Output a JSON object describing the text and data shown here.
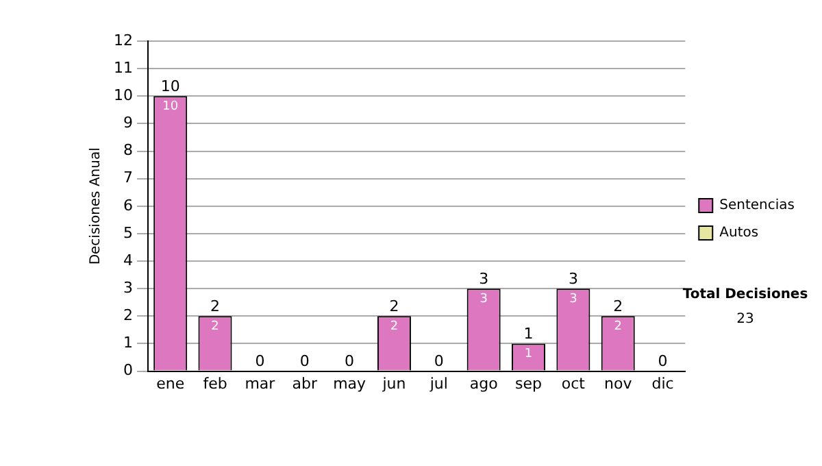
{
  "chart_data": {
    "type": "bar",
    "stacked": true,
    "ylabel": "Decisiones Anual",
    "categories": [
      "ene",
      "feb",
      "mar",
      "abr",
      "may",
      "jun",
      "jul",
      "ago",
      "sep",
      "oct",
      "nov",
      "dic"
    ],
    "series": [
      {
        "name": "Sentencias",
        "color": "#dd77c0",
        "values": [
          10,
          2,
          0,
          0,
          0,
          2,
          0,
          3,
          1,
          3,
          2,
          0
        ],
        "value_labels": [
          "10",
          "2",
          null,
          null,
          null,
          "2",
          null,
          "3",
          "1",
          "3",
          "2",
          null
        ]
      },
      {
        "name": "Autos",
        "color": "#e6e6a0",
        "values": [
          0,
          0,
          0,
          0,
          0,
          0,
          0,
          0,
          0,
          0,
          0,
          0
        ]
      }
    ],
    "totals": [
      "10",
      "2",
      "0",
      "0",
      "0",
      "2",
      "0",
      "3",
      "1",
      "3",
      "2",
      "0"
    ],
    "ylim": [
      0,
      12
    ],
    "yticks": [
      0,
      1,
      2,
      3,
      4,
      5,
      6,
      7,
      8,
      9,
      10,
      11,
      12
    ],
    "grid": "y",
    "legend": "right",
    "annotations": [
      "Total Decisiones",
      "23"
    ]
  }
}
